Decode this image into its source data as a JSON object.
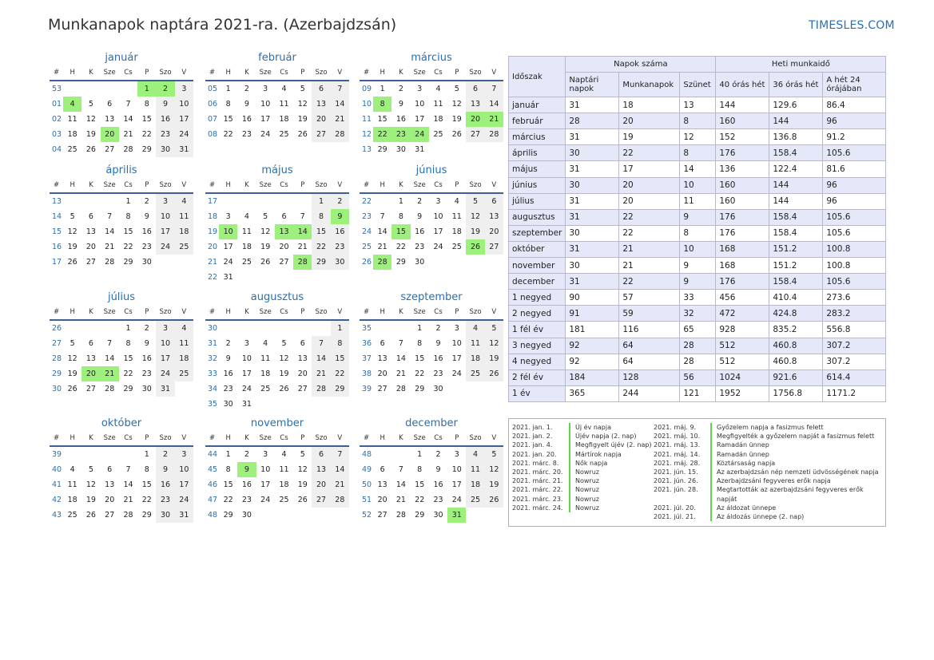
{
  "title": "Munkanapok naptára 2021-ra. (Azerbajdzsán)",
  "brand": "TIMESLES.COM",
  "colors": {
    "accent": "#2a6fb0",
    "holiday": "#9ef07d",
    "weekend": "#efefef",
    "header_bg": "#e4e8f8"
  },
  "weekday_header": [
    "#",
    "H",
    "K",
    "Sze",
    "Cs",
    "P",
    "Szo",
    "V"
  ],
  "months": [
    {
      "name": "január",
      "weeks": [
        [
          "53",
          "",
          "",
          "",
          "",
          "1",
          "2",
          "3"
        ],
        [
          "01",
          "4",
          "5",
          "6",
          "7",
          "8",
          "9",
          "10"
        ],
        [
          "02",
          "11",
          "12",
          "13",
          "14",
          "15",
          "16",
          "17"
        ],
        [
          "03",
          "18",
          "19",
          "20",
          "21",
          "22",
          "23",
          "24"
        ],
        [
          "04",
          "25",
          "26",
          "27",
          "28",
          "29",
          "30",
          "31"
        ]
      ],
      "holidays": [
        "1",
        "2",
        "4",
        "20"
      ]
    },
    {
      "name": "február",
      "weeks": [
        [
          "05",
          "1",
          "2",
          "3",
          "4",
          "5",
          "6",
          "7"
        ],
        [
          "06",
          "8",
          "9",
          "10",
          "11",
          "12",
          "13",
          "14"
        ],
        [
          "07",
          "15",
          "16",
          "17",
          "18",
          "19",
          "20",
          "21"
        ],
        [
          "08",
          "22",
          "23",
          "24",
          "25",
          "26",
          "27",
          "28"
        ]
      ],
      "holidays": []
    },
    {
      "name": "március",
      "weeks": [
        [
          "09",
          "1",
          "2",
          "3",
          "4",
          "5",
          "6",
          "7"
        ],
        [
          "10",
          "8",
          "9",
          "10",
          "11",
          "12",
          "13",
          "14"
        ],
        [
          "11",
          "15",
          "16",
          "17",
          "18",
          "19",
          "20",
          "21"
        ],
        [
          "12",
          "22",
          "23",
          "24",
          "25",
          "26",
          "27",
          "28"
        ],
        [
          "13",
          "29",
          "30",
          "31",
          "",
          "",
          "",
          ""
        ]
      ],
      "holidays": [
        "8",
        "20",
        "21",
        "22",
        "23",
        "24"
      ]
    },
    {
      "name": "április",
      "weeks": [
        [
          "13",
          "",
          "",
          "",
          "1",
          "2",
          "3",
          "4"
        ],
        [
          "14",
          "5",
          "6",
          "7",
          "8",
          "9",
          "10",
          "11"
        ],
        [
          "15",
          "12",
          "13",
          "14",
          "15",
          "16",
          "17",
          "18"
        ],
        [
          "16",
          "19",
          "20",
          "21",
          "22",
          "23",
          "24",
          "25"
        ],
        [
          "17",
          "26",
          "27",
          "28",
          "29",
          "30",
          "",
          ""
        ]
      ],
      "holidays": []
    },
    {
      "name": "május",
      "weeks": [
        [
          "17",
          "",
          "",
          "",
          "",
          "",
          "1",
          "2"
        ],
        [
          "18",
          "3",
          "4",
          "5",
          "6",
          "7",
          "8",
          "9"
        ],
        [
          "19",
          "10",
          "11",
          "12",
          "13",
          "14",
          "15",
          "16"
        ],
        [
          "20",
          "17",
          "18",
          "19",
          "20",
          "21",
          "22",
          "23"
        ],
        [
          "21",
          "24",
          "25",
          "26",
          "27",
          "28",
          "29",
          "30"
        ],
        [
          "22",
          "31",
          "",
          "",
          "",
          "",
          "",
          ""
        ]
      ],
      "holidays": [
        "9",
        "10",
        "13",
        "14",
        "28"
      ]
    },
    {
      "name": "június",
      "weeks": [
        [
          "22",
          "",
          "1",
          "2",
          "3",
          "4",
          "5",
          "6"
        ],
        [
          "23",
          "7",
          "8",
          "9",
          "10",
          "11",
          "12",
          "13"
        ],
        [
          "24",
          "14",
          "15",
          "16",
          "17",
          "18",
          "19",
          "20"
        ],
        [
          "25",
          "21",
          "22",
          "23",
          "24",
          "25",
          "26",
          "27"
        ],
        [
          "26",
          "28",
          "29",
          "30",
          "",
          "",
          "",
          ""
        ]
      ],
      "holidays": [
        "15",
        "26",
        "28"
      ]
    },
    {
      "name": "július",
      "weeks": [
        [
          "26",
          "",
          "",
          "",
          "1",
          "2",
          "3",
          "4"
        ],
        [
          "27",
          "5",
          "6",
          "7",
          "8",
          "9",
          "10",
          "11"
        ],
        [
          "28",
          "12",
          "13",
          "14",
          "15",
          "16",
          "17",
          "18"
        ],
        [
          "29",
          "19",
          "20",
          "21",
          "22",
          "23",
          "24",
          "25"
        ],
        [
          "30",
          "26",
          "27",
          "28",
          "29",
          "30",
          "31",
          ""
        ]
      ],
      "holidays": [
        "20",
        "21"
      ]
    },
    {
      "name": "augusztus",
      "weeks": [
        [
          "30",
          "",
          "",
          "",
          "",
          "",
          "",
          "1"
        ],
        [
          "31",
          "2",
          "3",
          "4",
          "5",
          "6",
          "7",
          "8"
        ],
        [
          "32",
          "9",
          "10",
          "11",
          "12",
          "13",
          "14",
          "15"
        ],
        [
          "33",
          "16",
          "17",
          "18",
          "19",
          "20",
          "21",
          "22"
        ],
        [
          "34",
          "23",
          "24",
          "25",
          "26",
          "27",
          "28",
          "29"
        ],
        [
          "35",
          "30",
          "31",
          "",
          "",
          "",
          "",
          ""
        ]
      ],
      "holidays": []
    },
    {
      "name": "szeptember",
      "weeks": [
        [
          "35",
          "",
          "",
          "1",
          "2",
          "3",
          "4",
          "5"
        ],
        [
          "36",
          "6",
          "7",
          "8",
          "9",
          "10",
          "11",
          "12"
        ],
        [
          "37",
          "13",
          "14",
          "15",
          "16",
          "17",
          "18",
          "19"
        ],
        [
          "38",
          "20",
          "21",
          "22",
          "23",
          "24",
          "25",
          "26"
        ],
        [
          "39",
          "27",
          "28",
          "29",
          "30",
          "",
          "",
          ""
        ]
      ],
      "holidays": []
    },
    {
      "name": "október",
      "weeks": [
        [
          "39",
          "",
          "",
          "",
          "",
          "1",
          "2",
          "3"
        ],
        [
          "40",
          "4",
          "5",
          "6",
          "7",
          "8",
          "9",
          "10"
        ],
        [
          "41",
          "11",
          "12",
          "13",
          "14",
          "15",
          "16",
          "17"
        ],
        [
          "42",
          "18",
          "19",
          "20",
          "21",
          "22",
          "23",
          "24"
        ],
        [
          "43",
          "25",
          "26",
          "27",
          "28",
          "29",
          "30",
          "31"
        ]
      ],
      "holidays": []
    },
    {
      "name": "november",
      "weeks": [
        [
          "44",
          "1",
          "2",
          "3",
          "4",
          "5",
          "6",
          "7"
        ],
        [
          "45",
          "8",
          "9",
          "10",
          "11",
          "12",
          "13",
          "14"
        ],
        [
          "46",
          "15",
          "16",
          "17",
          "18",
          "19",
          "20",
          "21"
        ],
        [
          "47",
          "22",
          "23",
          "24",
          "25",
          "26",
          "27",
          "28"
        ],
        [
          "48",
          "29",
          "30",
          "",
          "",
          "",
          "",
          ""
        ]
      ],
      "holidays": [
        "9"
      ]
    },
    {
      "name": "december",
      "weeks": [
        [
          "48",
          "",
          "",
          "1",
          "2",
          "3",
          "4",
          "5"
        ],
        [
          "49",
          "6",
          "7",
          "8",
          "9",
          "10",
          "11",
          "12"
        ],
        [
          "50",
          "13",
          "14",
          "15",
          "16",
          "17",
          "18",
          "19"
        ],
        [
          "51",
          "20",
          "21",
          "22",
          "23",
          "24",
          "25",
          "26"
        ],
        [
          "52",
          "27",
          "28",
          "29",
          "30",
          "31",
          "",
          ""
        ]
      ],
      "holidays": [
        "31"
      ]
    }
  ],
  "stats": {
    "period_header": "Időszak",
    "days_header": "Napok száma",
    "hours_header": "Heti munkaidő",
    "sub_headers": [
      "Naptári napok",
      "Munkanapok",
      "Szünet",
      "40 órás hét",
      "36 órás hét",
      "A hét 24 órájában"
    ],
    "rows": [
      [
        "január",
        "31",
        "18",
        "13",
        "144",
        "129.6",
        "86.4"
      ],
      [
        "február",
        "28",
        "20",
        "8",
        "160",
        "144",
        "96"
      ],
      [
        "március",
        "31",
        "19",
        "12",
        "152",
        "136.8",
        "91.2"
      ],
      [
        "április",
        "30",
        "22",
        "8",
        "176",
        "158.4",
        "105.6"
      ],
      [
        "május",
        "31",
        "17",
        "14",
        "136",
        "122.4",
        "81.6"
      ],
      [
        "június",
        "30",
        "20",
        "10",
        "160",
        "144",
        "96"
      ],
      [
        "július",
        "31",
        "20",
        "11",
        "160",
        "144",
        "96"
      ],
      [
        "augusztus",
        "31",
        "22",
        "9",
        "176",
        "158.4",
        "105.6"
      ],
      [
        "szeptember",
        "30",
        "22",
        "8",
        "176",
        "158.4",
        "105.6"
      ],
      [
        "október",
        "31",
        "21",
        "10",
        "168",
        "151.2",
        "100.8"
      ],
      [
        "november",
        "30",
        "21",
        "9",
        "168",
        "151.2",
        "100.8"
      ],
      [
        "december",
        "31",
        "22",
        "9",
        "176",
        "158.4",
        "105.6"
      ],
      [
        "1 negyed",
        "90",
        "57",
        "33",
        "456",
        "410.4",
        "273.6"
      ],
      [
        "2 negyed",
        "91",
        "59",
        "32",
        "472",
        "424.8",
        "283.2"
      ],
      [
        "1 fél év",
        "181",
        "116",
        "65",
        "928",
        "835.2",
        "556.8"
      ],
      [
        "3 negyed",
        "92",
        "64",
        "28",
        "512",
        "460.8",
        "307.2"
      ],
      [
        "4 negyed",
        "92",
        "64",
        "28",
        "512",
        "460.8",
        "307.2"
      ],
      [
        "2 fél év",
        "184",
        "128",
        "56",
        "1024",
        "921.6",
        "614.4"
      ],
      [
        "1 év",
        "365",
        "244",
        "121",
        "1952",
        "1756.8",
        "1171.2"
      ]
    ]
  },
  "holidays_list": {
    "left": [
      {
        "date": "2021. jan. 1.",
        "name": "Új év napja"
      },
      {
        "date": "2021. jan. 2.",
        "name": "Újév napja (2. nap)"
      },
      {
        "date": "2021. jan. 4.",
        "name": "Megfigyelt újév (2. nap)"
      },
      {
        "date": "2021. jan. 20.",
        "name": "Mártírok napja"
      },
      {
        "date": "2021. márc. 8.",
        "name": "Nők napja"
      },
      {
        "date": "2021. márc. 20.",
        "name": "Nowruz"
      },
      {
        "date": "2021. márc. 21.",
        "name": "Nowruz"
      },
      {
        "date": "2021. márc. 22.",
        "name": "Nowruz"
      },
      {
        "date": "2021. márc. 23.",
        "name": "Nowruz"
      },
      {
        "date": "2021. márc. 24.",
        "name": "Nowruz"
      }
    ],
    "right": [
      {
        "date": "2021. máj. 9.",
        "name": "Győzelem napja a fasizmus felett"
      },
      {
        "date": "2021. máj. 10.",
        "name": "Megfigyelték a győzelem napját a fasizmus felett"
      },
      {
        "date": "2021. máj. 13.",
        "name": "Ramadán ünnep"
      },
      {
        "date": "2021. máj. 14.",
        "name": "Ramadán ünnep"
      },
      {
        "date": "2021. máj. 28.",
        "name": "Köztársaság napja"
      },
      {
        "date": "2021. jún. 15.",
        "name": "Az azerbajdzsán nép nemzeti üdvösségének napja"
      },
      {
        "date": "2021. jún. 26.",
        "name": "Azerbajdzsáni fegyveres erők napja"
      },
      {
        "date": "2021. jún. 28.",
        "name": "Megtartották az azerbajdzsáni fegyveres erők",
        "name2": "napját"
      },
      {
        "date": "2021. júl. 20.",
        "name": "Az áldozat ünnepe"
      },
      {
        "date": "2021. júl. 21.",
        "name": "Az áldozás ünnepe (2. nap)"
      }
    ]
  }
}
